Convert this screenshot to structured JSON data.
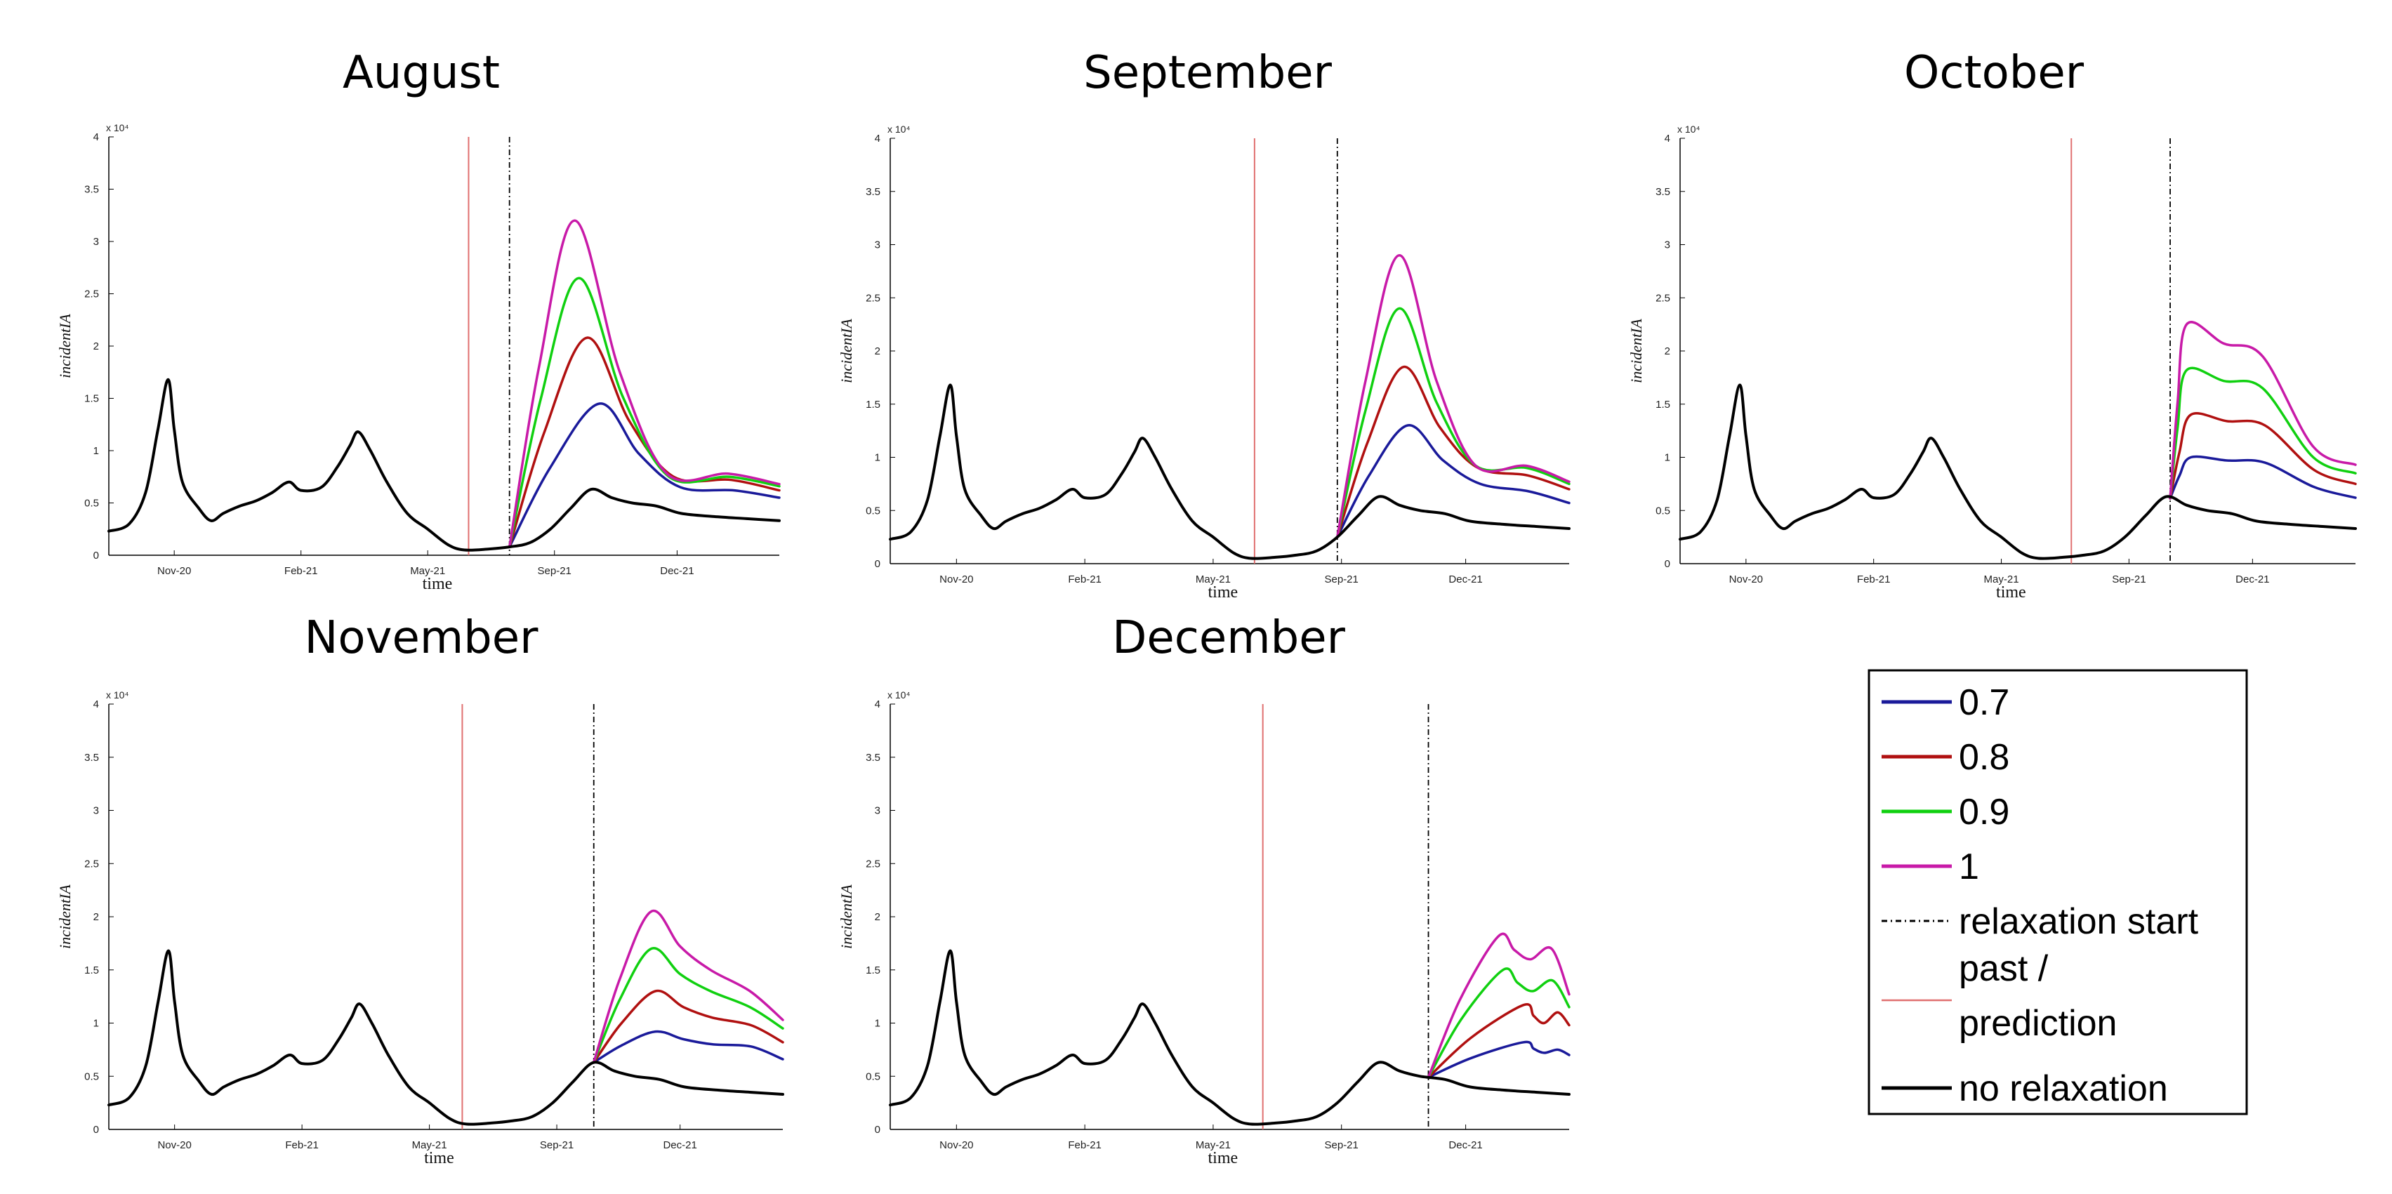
{
  "chart_data": {
    "type": "line",
    "x_categories": [
      "Nov-20",
      "Feb-21",
      "May-21",
      "Sep-21",
      "Dec-21"
    ],
    "x_range": [
      0,
      16.4
    ],
    "y_range": [
      0,
      4
    ],
    "y_ticks": [
      "0",
      "0.5",
      "1",
      "1.5",
      "2",
      "2.5",
      "3",
      "3.5",
      "4"
    ],
    "y_exponent": "x 10⁴",
    "ylabel": "incidentIA",
    "xlabel": "time",
    "baseline": {
      "name": "no relaxation",
      "color": "#000000",
      "points": [
        [
          0,
          0.23
        ],
        [
          0.5,
          0.3
        ],
        [
          0.9,
          0.6
        ],
        [
          1.2,
          1.2
        ],
        [
          1.45,
          1.68
        ],
        [
          1.6,
          1.2
        ],
        [
          1.8,
          0.7
        ],
        [
          2.2,
          0.45
        ],
        [
          2.5,
          0.33
        ],
        [
          2.8,
          0.4
        ],
        [
          3.2,
          0.47
        ],
        [
          3.6,
          0.52
        ],
        [
          4.0,
          0.6
        ],
        [
          4.4,
          0.7
        ],
        [
          4.7,
          0.62
        ],
        [
          5.2,
          0.65
        ],
        [
          5.6,
          0.85
        ],
        [
          5.9,
          1.05
        ],
        [
          6.1,
          1.18
        ],
        [
          6.4,
          1.0
        ],
        [
          6.8,
          0.7
        ],
        [
          7.3,
          0.4
        ],
        [
          7.8,
          0.25
        ],
        [
          8.3,
          0.1
        ],
        [
          8.7,
          0.05
        ],
        [
          9.3,
          0.06
        ],
        [
          9.8,
          0.08
        ],
        [
          10.3,
          0.12
        ],
        [
          10.8,
          0.25
        ],
        [
          11.3,
          0.45
        ],
        [
          11.8,
          0.63
        ],
        [
          12.3,
          0.55
        ],
        [
          12.8,
          0.5
        ],
        [
          13.4,
          0.47
        ],
        [
          14.0,
          0.4
        ],
        [
          14.8,
          0.37
        ],
        [
          15.6,
          0.35
        ],
        [
          16.4,
          0.33
        ]
      ]
    },
    "legend": [
      {
        "label": "0.7",
        "color": "#1a1a9a",
        "style": "solid"
      },
      {
        "label": "0.8",
        "color": "#b01010",
        "style": "solid"
      },
      {
        "label": "0.9",
        "color": "#10d010",
        "style": "solid"
      },
      {
        "label": "1",
        "color": "#c81aa8",
        "style": "solid"
      },
      {
        "label": "relaxation start",
        "color": "#000000",
        "style": "dashdot"
      },
      {
        "label_lines": [
          "past /",
          "prediction"
        ],
        "color": "#e07070",
        "style": "solid"
      },
      {
        "label": "no relaxation",
        "color": "#000000",
        "style": "solid"
      }
    ],
    "panels": [
      {
        "title": "August",
        "past_prediction_x": 8.8,
        "relaxation_start_x": 9.8,
        "series": [
          {
            "name": "0.7",
            "peak_x": 12.0,
            "peak": 1.45,
            "tail": [
              0.65,
              0.62,
              0.55
            ]
          },
          {
            "name": "0.8",
            "peak_x": 11.7,
            "peak": 2.08,
            "tail": [
              0.75,
              0.72,
              0.62
            ]
          },
          {
            "name": "0.9",
            "peak_x": 11.5,
            "peak": 2.65,
            "tail": [
              0.75,
              0.75,
              0.66
            ]
          },
          {
            "name": "1",
            "peak_x": 11.4,
            "peak": 3.2,
            "tail": [
              0.78,
              0.78,
              0.68
            ]
          }
        ]
      },
      {
        "title": "September",
        "past_prediction_x": 8.8,
        "relaxation_start_x": 10.8,
        "series": [
          {
            "name": "0.7",
            "peak_x": 12.5,
            "peak": 1.3,
            "tail": [
              0.75,
              0.68,
              0.57
            ]
          },
          {
            "name": "0.8",
            "peak_x": 12.4,
            "peak": 1.85,
            "tail": [
              0.9,
              0.83,
              0.7
            ]
          },
          {
            "name": "0.9",
            "peak_x": 12.3,
            "peak": 2.4,
            "tail": [
              0.92,
              0.9,
              0.75
            ]
          },
          {
            "name": "1",
            "peak_x": 12.3,
            "peak": 2.9,
            "tail": [
              0.92,
              0.92,
              0.77
            ]
          }
        ]
      },
      {
        "title": "October",
        "past_prediction_x": 9.5,
        "relaxation_start_x": 11.9,
        "series": [
          {
            "name": "0.7",
            "peak_x": 12.4,
            "peak": 1.0,
            "tail": [
              0.95,
              0.72,
              0.62
            ]
          },
          {
            "name": "0.8",
            "peak_x": 12.4,
            "peak": 1.4,
            "tail": [
              1.3,
              0.88,
              0.75
            ]
          },
          {
            "name": "0.9",
            "peak_x": 12.3,
            "peak": 1.82,
            "tail": [
              1.65,
              1.0,
              0.85
            ]
          },
          {
            "name": "1",
            "peak_x": 12.3,
            "peak": 2.25,
            "tail": [
              1.95,
              1.1,
              0.93
            ]
          }
        ]
      },
      {
        "title": "November",
        "past_prediction_x": 8.6,
        "relaxation_start_x": 11.8,
        "series": [
          {
            "name": "0.7",
            "peak_x": 13.3,
            "peak": 0.92,
            "tail": [
              0.8,
              0.78,
              0.66
            ]
          },
          {
            "name": "0.8",
            "peak_x": 13.3,
            "peak": 1.3,
            "tail": [
              1.05,
              0.98,
              0.82
            ]
          },
          {
            "name": "0.9",
            "peak_x": 13.2,
            "peak": 1.7,
            "tail": [
              1.3,
              1.15,
              0.95
            ]
          },
          {
            "name": "1",
            "peak_x": 13.2,
            "peak": 2.05,
            "tail": [
              1.5,
              1.3,
              1.03
            ]
          }
        ]
      },
      {
        "title": "December",
        "past_prediction_x": 9.0,
        "relaxation_start_x": 13.0,
        "series": [
          {
            "name": "0.7",
            "peak_x": 15.3,
            "peak": 0.82,
            "tail": [
              0.72,
              0.75,
              0.7
            ]
          },
          {
            "name": "0.8",
            "peak_x": 15.3,
            "peak": 1.17,
            "tail": [
              1.0,
              1.1,
              0.98
            ]
          },
          {
            "name": "0.9",
            "peak_x": 14.8,
            "peak": 1.5,
            "tail": [
              1.3,
              1.4,
              1.15
            ]
          },
          {
            "name": "1",
            "peak_x": 14.7,
            "peak": 1.82,
            "tail": [
              1.6,
              1.7,
              1.27
            ]
          }
        ]
      }
    ]
  }
}
